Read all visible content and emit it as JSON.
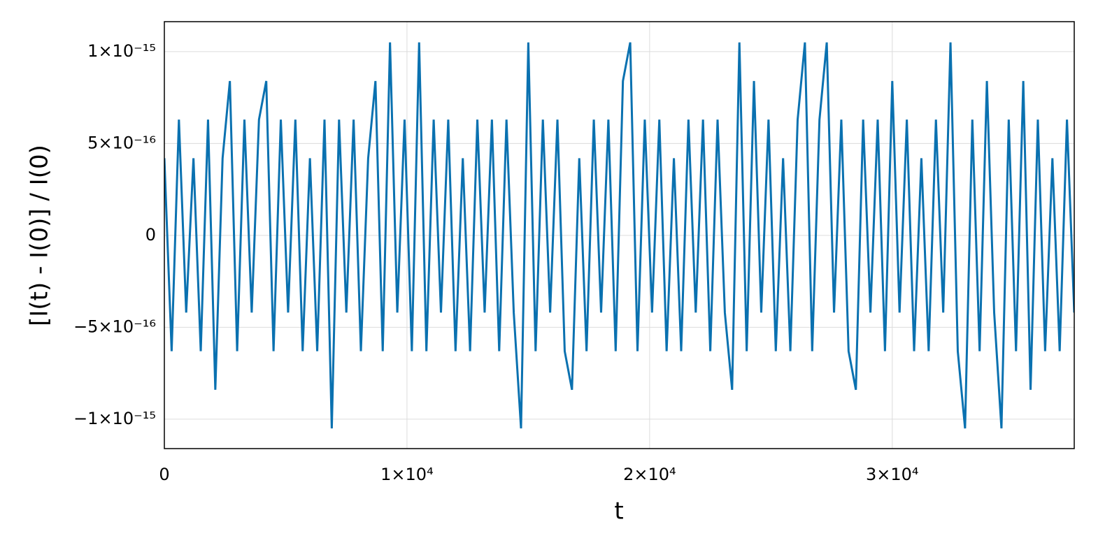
{
  "chart_data": {
    "type": "line",
    "xlabel": "t",
    "ylabel": "[I(t) - I(0)] / I(0)",
    "color": "#0a71b0",
    "grid": true,
    "xlim": [
      0,
      37500
    ],
    "ylim": [
      -1.16e-15,
      1.163e-15
    ],
    "xticks": [
      0,
      {
        "value": 10000,
        "label": "1×10⁴"
      },
      {
        "value": 20000,
        "label": "2×10⁴"
      },
      {
        "value": 30000,
        "label": "3×10⁴"
      }
    ],
    "yticks": [
      {
        "value": -1e-15,
        "label": "−1×10⁻¹⁵"
      },
      {
        "value": -5e-16,
        "label": "−5×10⁻¹⁶"
      },
      0,
      {
        "value": 5e-16,
        "label": "5×10⁻¹⁶"
      },
      {
        "value": 1e-15,
        "label": "1×10⁻¹⁵"
      }
    ],
    "x": [
      0,
      300,
      600,
      900,
      1200,
      1500,
      1800,
      2100,
      2400,
      2700,
      3000,
      3300,
      3600,
      3900,
      4200,
      4500,
      4800,
      5100,
      5400,
      5700,
      6000,
      6300,
      6600,
      6900,
      7200,
      7500,
      7800,
      8100,
      8400,
      8700,
      9000,
      9300,
      9600,
      9900,
      10200,
      10500,
      10800,
      11100,
      11400,
      11700,
      12000,
      12300,
      12600,
      12900,
      13200,
      13500,
      13800,
      14100,
      14400,
      14700,
      15000,
      15300,
      15600,
      15900,
      16200,
      16500,
      16800,
      17100,
      17400,
      17700,
      18000,
      18300,
      18600,
      18900,
      19200,
      19500,
      19800,
      20100,
      20400,
      20700,
      21000,
      21300,
      21600,
      21900,
      22200,
      22500,
      22800,
      23100,
      23400,
      23700,
      24000,
      24300,
      24600,
      24900,
      25200,
      25500,
      25800,
      26100,
      26400,
      26700,
      27000,
      27300,
      27600,
      27900,
      28200,
      28500,
      28800,
      29100,
      29400,
      29700,
      30000,
      30300,
      30600,
      30900,
      31200,
      31500,
      31800,
      32100,
      32400,
      32700,
      33000,
      33300,
      33600,
      33900,
      34200,
      34500,
      34800,
      35100,
      35400,
      35700,
      36000,
      36300,
      36600,
      36900,
      37200,
      37500
    ],
    "values": [
      4.2e-16,
      -6.3e-16,
      6.3e-16,
      -4.2e-16,
      4.2e-16,
      -6.3e-16,
      6.3e-16,
      -8.4e-16,
      4.2e-16,
      8.4e-16,
      -6.3e-16,
      6.3e-16,
      -4.2e-16,
      6.3e-16,
      8.4e-16,
      -6.3e-16,
      6.3e-16,
      -4.2e-16,
      6.3e-16,
      -6.3e-16,
      4.2e-16,
      -6.3e-16,
      6.3e-16,
      -1.05e-15,
      6.3e-16,
      -4.2e-16,
      6.3e-16,
      -6.3e-16,
      4.2e-16,
      8.4e-16,
      -6.3e-16,
      1.05e-15,
      -4.2e-16,
      6.3e-16,
      -6.3e-16,
      1.05e-15,
      -6.3e-16,
      6.3e-16,
      -4.2e-16,
      6.3e-16,
      -6.3e-16,
      4.2e-16,
      -6.3e-16,
      6.3e-16,
      -4.2e-16,
      6.3e-16,
      -6.3e-16,
      6.3e-16,
      -4.2e-16,
      -1.05e-15,
      1.05e-15,
      -6.3e-16,
      6.3e-16,
      -4.2e-16,
      6.3e-16,
      -6.3e-16,
      -8.4e-16,
      4.2e-16,
      -6.3e-16,
      6.3e-16,
      -4.2e-16,
      6.3e-16,
      -6.3e-16,
      8.4e-16,
      1.05e-15,
      -6.3e-16,
      6.3e-16,
      -4.2e-16,
      6.3e-16,
      -6.3e-16,
      4.2e-16,
      -6.3e-16,
      6.3e-16,
      -4.2e-16,
      6.3e-16,
      -6.3e-16,
      6.3e-16,
      -4.2e-16,
      -8.4e-16,
      1.05e-15,
      -6.3e-16,
      8.4e-16,
      -4.2e-16,
      6.3e-16,
      -6.3e-16,
      4.2e-16,
      -6.3e-16,
      6.3e-16,
      1.05e-15,
      -6.3e-16,
      6.3e-16,
      1.05e-15,
      -4.2e-16,
      6.3e-16,
      -6.3e-16,
      -8.4e-16,
      6.3e-16,
      -4.2e-16,
      6.3e-16,
      -6.3e-16,
      8.4e-16,
      -4.2e-16,
      6.3e-16,
      -6.3e-16,
      4.2e-16,
      -6.3e-16,
      6.3e-16,
      -4.2e-16,
      1.05e-15,
      -6.3e-16,
      -1.05e-15,
      6.3e-16,
      -6.3e-16,
      8.4e-16,
      -4.2e-16,
      -1.05e-15,
      6.3e-16,
      -6.3e-16,
      8.4e-16,
      -8.4e-16,
      6.3e-16,
      -6.3e-16,
      4.2e-16,
      -6.3e-16,
      6.3e-16,
      -4.2e-16
    ]
  }
}
